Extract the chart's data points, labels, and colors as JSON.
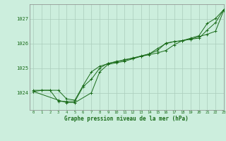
{
  "title": "Graphe pression niveau de la mer (hPa)",
  "bg_color": "#cceedd",
  "grid_color": "#aaccbb",
  "line_color": "#1a6b1a",
  "xlim": [
    -0.5,
    23
  ],
  "ylim": [
    1023.3,
    1027.6
  ],
  "yticks": [
    1024,
    1025,
    1026,
    1027
  ],
  "xticks": [
    0,
    1,
    2,
    3,
    4,
    5,
    6,
    7,
    8,
    9,
    10,
    11,
    12,
    13,
    14,
    15,
    16,
    17,
    18,
    19,
    20,
    21,
    22,
    23
  ],
  "series1": {
    "x": [
      0,
      1,
      2,
      3,
      4,
      5,
      6,
      7,
      8,
      9,
      10,
      11,
      12,
      13,
      14,
      15,
      16,
      17,
      18,
      19,
      20,
      21,
      22,
      23
    ],
    "y": [
      1024.1,
      1024.1,
      1024.1,
      1023.65,
      1023.65,
      1023.65,
      1024.25,
      1024.55,
      1025.0,
      1025.2,
      1025.25,
      1025.35,
      1025.4,
      1025.5,
      1025.58,
      1025.8,
      1026.0,
      1026.08,
      1026.12,
      1026.18,
      1026.28,
      1026.38,
      1026.5,
      1027.35
    ]
  },
  "series2": {
    "x": [
      0,
      3,
      4,
      5,
      7,
      8,
      9,
      10,
      11,
      12,
      13,
      14,
      15,
      16,
      17,
      18,
      19,
      20,
      21,
      22,
      23
    ],
    "y": [
      1024.05,
      1023.7,
      1023.6,
      1023.6,
      1024.0,
      1024.85,
      1025.15,
      1025.22,
      1025.28,
      1025.38,
      1025.48,
      1025.55,
      1025.62,
      1025.72,
      1025.95,
      1026.12,
      1026.18,
      1026.22,
      1026.55,
      1026.85,
      1027.38
    ]
  },
  "series3": {
    "x": [
      0,
      1,
      2,
      3,
      4,
      5,
      6,
      7,
      8,
      9,
      10,
      11,
      12,
      13,
      14,
      15,
      16,
      17,
      18,
      19,
      20,
      21,
      22,
      23
    ],
    "y": [
      1024.05,
      1024.1,
      1024.1,
      1024.1,
      1023.75,
      1023.7,
      1024.3,
      1024.85,
      1025.08,
      1025.18,
      1025.28,
      1025.32,
      1025.42,
      1025.48,
      1025.58,
      1025.72,
      1026.02,
      1026.08,
      1026.12,
      1026.22,
      1026.32,
      1026.82,
      1027.02,
      1027.38
    ]
  }
}
